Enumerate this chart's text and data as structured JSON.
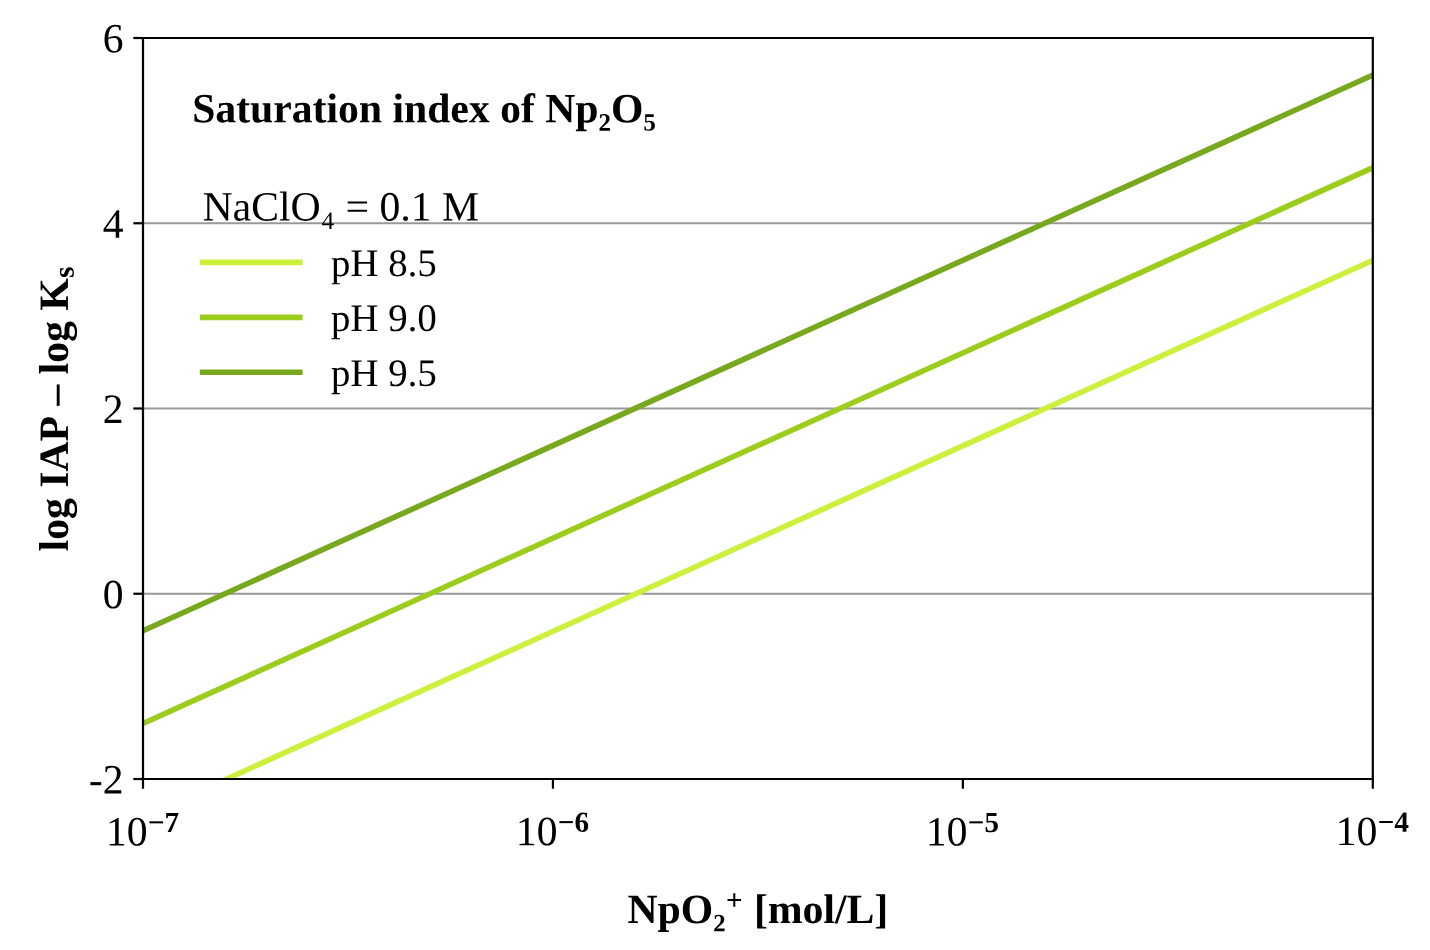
{
  "chart_data": {
    "type": "line",
    "title": "Saturation index of Np₂O₅",
    "legend_title": "NaClO₄ = 0.1 M",
    "xlabel": "NpO₂$^{+}$ [mol/L]",
    "ylabel": "log IAP – log K$_{s}$",
    "log": "x",
    "xlim": [
      1e-07,
      0.0001
    ],
    "xticks": [
      {
        "value": 1e-07,
        "label": "10$^{−7}$"
      },
      {
        "value": 1e-06,
        "label": "10$^{−6}$"
      },
      {
        "value": 1e-05,
        "label": "10$^{−5}$"
      },
      {
        "value": 0.0001,
        "label": "10$^{−4}$"
      }
    ],
    "ylim": [
      -2,
      6
    ],
    "yticks": [
      -2,
      0,
      2,
      4,
      6
    ],
    "grid": "y",
    "legend": "top left",
    "marker": "none",
    "line_style": "solid",
    "series": [
      {
        "name": "pH 8.5",
        "color": "#ccf03c",
        "x": [
          1.6e-07,
          0.0001
        ],
        "values": [
          -2.0,
          3.6
        ]
      },
      {
        "name": "pH 9.0",
        "color": "#9ccc1c",
        "x": [
          1e-07,
          0.0001
        ],
        "values": [
          -1.4,
          4.6
        ]
      },
      {
        "name": "pH 9.5",
        "color": "#78a81e",
        "x": [
          1e-07,
          0.0001
        ],
        "values": [
          -0.4,
          5.6
        ]
      }
    ]
  }
}
